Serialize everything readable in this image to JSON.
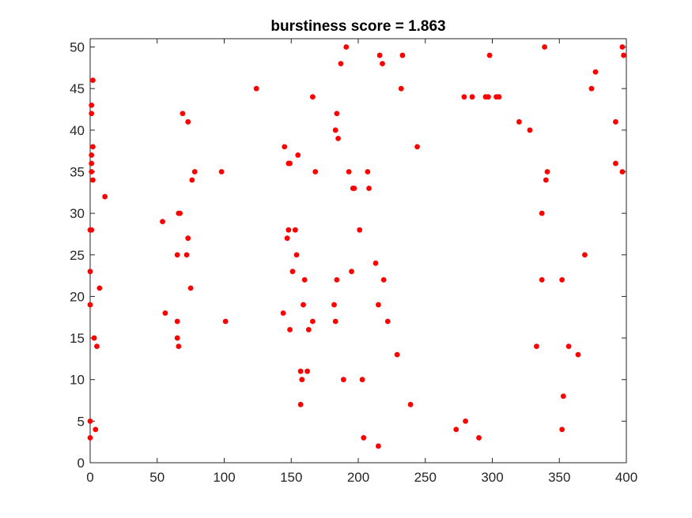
{
  "chart_data": {
    "type": "scatter",
    "title": "burstiness score = 1.863",
    "xlabel": "",
    "ylabel": "",
    "xlim": [
      0,
      400
    ],
    "ylim": [
      0,
      51
    ],
    "x_ticks": [
      0,
      50,
      100,
      150,
      200,
      250,
      300,
      350,
      400
    ],
    "y_ticks": [
      0,
      5,
      10,
      15,
      20,
      25,
      30,
      35,
      40,
      45,
      50
    ],
    "grid": false,
    "legend": "none",
    "marker_color": "#ff0000",
    "points": [
      [
        0,
        3
      ],
      [
        0,
        5
      ],
      [
        0,
        19
      ],
      [
        0,
        23
      ],
      [
        0,
        28
      ],
      [
        1,
        28
      ],
      [
        1,
        35
      ],
      [
        1,
        36
      ],
      [
        1,
        37
      ],
      [
        1,
        42
      ],
      [
        1,
        43
      ],
      [
        2,
        34
      ],
      [
        2,
        38
      ],
      [
        2,
        46
      ],
      [
        3,
        15
      ],
      [
        4,
        4
      ],
      [
        5,
        14
      ],
      [
        7,
        21
      ],
      [
        11,
        32
      ],
      [
        54,
        29
      ],
      [
        56,
        18
      ],
      [
        65,
        15
      ],
      [
        65,
        17
      ],
      [
        65,
        25
      ],
      [
        66,
        14
      ],
      [
        66,
        30
      ],
      [
        67,
        30
      ],
      [
        69,
        42
      ],
      [
        72,
        25
      ],
      [
        73,
        27
      ],
      [
        73,
        41
      ],
      [
        75,
        21
      ],
      [
        76,
        34
      ],
      [
        78,
        35
      ],
      [
        98,
        35
      ],
      [
        101,
        17
      ],
      [
        124,
        45
      ],
      [
        144,
        18
      ],
      [
        145,
        38
      ],
      [
        147,
        27
      ],
      [
        148,
        28
      ],
      [
        148,
        36
      ],
      [
        149,
        16
      ],
      [
        149,
        36
      ],
      [
        151,
        23
      ],
      [
        153,
        28
      ],
      [
        154,
        25
      ],
      [
        155,
        37
      ],
      [
        157,
        7
      ],
      [
        157,
        11
      ],
      [
        158,
        10
      ],
      [
        159,
        19
      ],
      [
        160,
        22
      ],
      [
        162,
        11
      ],
      [
        163,
        16
      ],
      [
        166,
        44
      ],
      [
        166,
        17
      ],
      [
        168,
        35
      ],
      [
        182,
        19
      ],
      [
        183,
        17
      ],
      [
        183,
        40
      ],
      [
        184,
        22
      ],
      [
        184,
        42
      ],
      [
        185,
        39
      ],
      [
        187,
        48
      ],
      [
        189,
        10
      ],
      [
        191,
        50
      ],
      [
        193,
        35
      ],
      [
        195,
        23
      ],
      [
        196,
        33
      ],
      [
        197,
        33
      ],
      [
        201,
        28
      ],
      [
        203,
        10
      ],
      [
        204,
        3
      ],
      [
        207,
        35
      ],
      [
        208,
        33
      ],
      [
        213,
        24
      ],
      [
        215,
        2
      ],
      [
        215,
        19
      ],
      [
        216,
        49
      ],
      [
        218,
        48
      ],
      [
        219,
        22
      ],
      [
        222,
        17
      ],
      [
        229,
        13
      ],
      [
        232,
        45
      ],
      [
        233,
        49
      ],
      [
        239,
        7
      ],
      [
        244,
        38
      ],
      [
        273,
        4
      ],
      [
        279,
        44
      ],
      [
        280,
        5
      ],
      [
        285,
        44
      ],
      [
        290,
        3
      ],
      [
        295,
        44
      ],
      [
        297,
        44
      ],
      [
        298,
        49
      ],
      [
        303,
        44
      ],
      [
        305,
        44
      ],
      [
        320,
        41
      ],
      [
        328,
        40
      ],
      [
        333,
        14
      ],
      [
        337,
        30
      ],
      [
        337,
        22
      ],
      [
        339,
        50
      ],
      [
        340,
        34
      ],
      [
        341,
        35
      ],
      [
        352,
        4
      ],
      [
        352,
        22
      ],
      [
        353,
        8
      ],
      [
        357,
        14
      ],
      [
        364,
        13
      ],
      [
        369,
        25
      ],
      [
        374,
        45
      ],
      [
        377,
        47
      ],
      [
        392,
        41
      ],
      [
        392,
        36
      ],
      [
        397,
        35
      ],
      [
        397,
        50
      ],
      [
        398,
        49
      ]
    ]
  }
}
